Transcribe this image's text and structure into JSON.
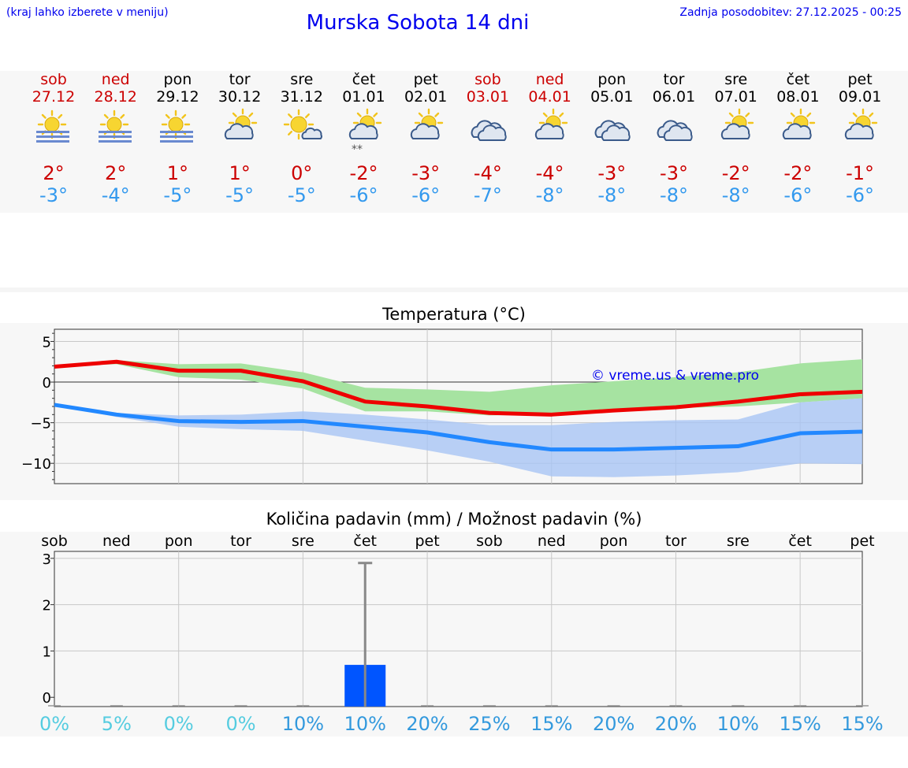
{
  "header": {
    "location_hint": "(kraj lahko izberete v meniju)",
    "title": "Murska Sobota 14 dni",
    "updated": "Zadnja posodobitev: 27.12.2025 - 00:25"
  },
  "colors": {
    "weekend": "#cc0000",
    "weekday": "#000000",
    "tmax": "#cc0000",
    "tmin": "#3399ee",
    "max_line": "#ee0000",
    "min_line": "#2288ff",
    "max_band": "#a6e3a1",
    "min_band": "#a8c4f4",
    "bar": "#0055ff",
    "pct_low": "#55cce0",
    "pct_high": "#3399dd"
  },
  "forecast": [
    {
      "day": "sob",
      "date": "27.12",
      "weekend": true,
      "icon": "fog-sun-icon",
      "tmax": "2°",
      "tmin": "-3°"
    },
    {
      "day": "ned",
      "date": "28.12",
      "weekend": true,
      "icon": "fog-sun-icon",
      "tmax": "2°",
      "tmin": "-4°"
    },
    {
      "day": "pon",
      "date": "29.12",
      "weekend": false,
      "icon": "fog-sun-icon",
      "tmax": "1°",
      "tmin": "-5°"
    },
    {
      "day": "tor",
      "date": "30.12",
      "weekend": false,
      "icon": "partly-cloudy-icon",
      "tmax": "1°",
      "tmin": "-5°"
    },
    {
      "day": "sre",
      "date": "31.12",
      "weekend": false,
      "icon": "mostly-sunny-icon",
      "tmax": "0°",
      "tmin": "-5°"
    },
    {
      "day": "čet",
      "date": "01.01",
      "weekend": false,
      "icon": "partly-cloudy-snow-icon",
      "tmax": "-2°",
      "tmin": "-6°"
    },
    {
      "day": "pet",
      "date": "02.01",
      "weekend": false,
      "icon": "partly-cloudy-icon",
      "tmax": "-3°",
      "tmin": "-6°"
    },
    {
      "day": "sob",
      "date": "03.01",
      "weekend": true,
      "icon": "cloudy-icon",
      "tmax": "-4°",
      "tmin": "-7°"
    },
    {
      "day": "ned",
      "date": "04.01",
      "weekend": true,
      "icon": "partly-cloudy-icon",
      "tmax": "-4°",
      "tmin": "-8°"
    },
    {
      "day": "pon",
      "date": "05.01",
      "weekend": false,
      "icon": "cloudy-icon",
      "tmax": "-3°",
      "tmin": "-8°"
    },
    {
      "day": "tor",
      "date": "06.01",
      "weekend": false,
      "icon": "cloudy-icon",
      "tmax": "-3°",
      "tmin": "-8°"
    },
    {
      "day": "sre",
      "date": "07.01",
      "weekend": false,
      "icon": "partly-cloudy-icon",
      "tmax": "-2°",
      "tmin": "-8°"
    },
    {
      "day": "čet",
      "date": "08.01",
      "weekend": false,
      "icon": "partly-cloudy-icon",
      "tmax": "-2°",
      "tmin": "-6°"
    },
    {
      "day": "pet",
      "date": "09.01",
      "weekend": false,
      "icon": "partly-cloudy-icon",
      "tmax": "-1°",
      "tmin": "-6°"
    }
  ],
  "chart_data": [
    {
      "type": "line",
      "title": "Temperatura (°C)",
      "watermark": "© vreme.us & vreme.pro",
      "ylim": [
        -12.5,
        6.5
      ],
      "yticks": [
        -10,
        -5,
        0,
        5
      ],
      "ytick_labels": [
        "−10",
        "−5",
        "0",
        "5"
      ],
      "x": [
        0,
        1,
        2,
        3,
        4,
        5,
        6,
        7,
        8,
        9,
        10,
        11,
        12,
        13
      ],
      "series": [
        {
          "name": "max",
          "values": [
            1.9,
            2.5,
            1.4,
            1.4,
            0.1,
            -2.4,
            -3.0,
            -3.8,
            -4.0,
            -3.5,
            -3.1,
            -2.4,
            -1.5,
            -1.2
          ],
          "band_low": [
            1.9,
            2.2,
            0.6,
            0.3,
            -0.8,
            -3.6,
            -3.6,
            -4.1,
            -4.0,
            -3.6,
            -3.2,
            -3.0,
            -2.5,
            -2.0
          ],
          "band_high": [
            1.9,
            2.7,
            2.2,
            2.3,
            1.2,
            -0.7,
            -0.9,
            -1.2,
            -0.4,
            0.1,
            0.6,
            1.2,
            2.3,
            2.8
          ]
        },
        {
          "name": "min",
          "values": [
            -2.8,
            -4.0,
            -4.8,
            -4.9,
            -4.8,
            -5.5,
            -6.2,
            -7.4,
            -8.3,
            -8.3,
            -8.1,
            -7.9,
            -6.3,
            -6.1
          ],
          "band_low": [
            -2.8,
            -4.3,
            -5.5,
            -5.8,
            -6.0,
            -7.2,
            -8.4,
            -9.8,
            -11.6,
            -11.7,
            -11.5,
            -11.1,
            -10.0,
            -10.1
          ],
          "band_high": [
            -2.8,
            -3.8,
            -4.1,
            -4.0,
            -3.6,
            -4.0,
            -4.6,
            -5.3,
            -5.3,
            -4.9,
            -4.7,
            -4.6,
            -2.5,
            -2.0
          ]
        }
      ]
    },
    {
      "type": "bar",
      "title": "Količina padavin (mm) / Možnost padavin (%)",
      "categories": [
        "sob",
        "ned",
        "pon",
        "tor",
        "sre",
        "čet",
        "pet",
        "sob",
        "ned",
        "pon",
        "tor",
        "sre",
        "čet",
        "pet"
      ],
      "values": [
        0,
        0,
        0,
        0,
        0,
        0.7,
        0,
        0,
        0,
        0,
        0,
        0,
        0,
        0
      ],
      "error_high": [
        0,
        0,
        0,
        0,
        0,
        2.9,
        0,
        0,
        0,
        0,
        0,
        0,
        0,
        0
      ],
      "ylim": [
        -0.2,
        3.15
      ],
      "yticks": [
        0,
        1,
        2,
        3
      ],
      "ytick_labels": [
        "0",
        "1",
        "2",
        "3"
      ],
      "probabilities": [
        "0%",
        "5%",
        "0%",
        "0%",
        "10%",
        "10%",
        "20%",
        "25%",
        "15%",
        "20%",
        "20%",
        "10%",
        "15%",
        "15%"
      ]
    }
  ]
}
